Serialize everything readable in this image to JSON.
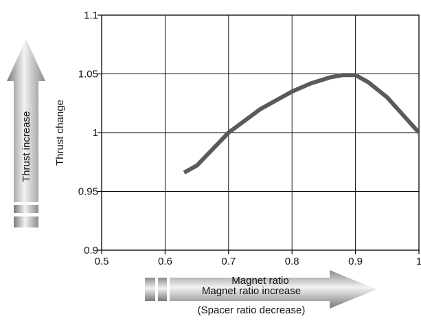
{
  "chart_data": {
    "type": "line",
    "xlabel": "Magnet ratio",
    "ylabel": "Thrust change",
    "xlim": [
      0.5,
      1.0
    ],
    "ylim": [
      0.9,
      1.1
    ],
    "grid": true,
    "x_ticks": [
      0.5,
      0.6,
      0.7,
      0.8,
      0.9,
      1.0
    ],
    "x_tick_labels": [
      "0.5",
      "0.6",
      "0.7",
      "0.8",
      "0.9",
      "1"
    ],
    "y_ticks": [
      0.9,
      0.95,
      1.0,
      1.05,
      1.1
    ],
    "y_tick_labels": [
      "0.9",
      "0.95",
      "1",
      "1.05",
      "1.1"
    ],
    "series": [
      {
        "x": [
          0.63,
          0.65,
          0.7,
          0.75,
          0.8,
          0.83,
          0.86,
          0.88,
          0.9,
          0.92,
          0.95,
          0.98,
          1.0
        ],
        "y": [
          0.966,
          0.972,
          1.0,
          1.02,
          1.035,
          1.042,
          1.047,
          1.049,
          1.049,
          1.043,
          1.03,
          1.012,
          1.0
        ]
      }
    ],
    "line_color": "#5a5a5a",
    "annotations": {
      "vertical_arrow": "Thrust increase",
      "horizontal_arrow_line1": "Magnet ratio increase",
      "horizontal_arrow_line2": "(Spacer ratio decrease)"
    }
  }
}
